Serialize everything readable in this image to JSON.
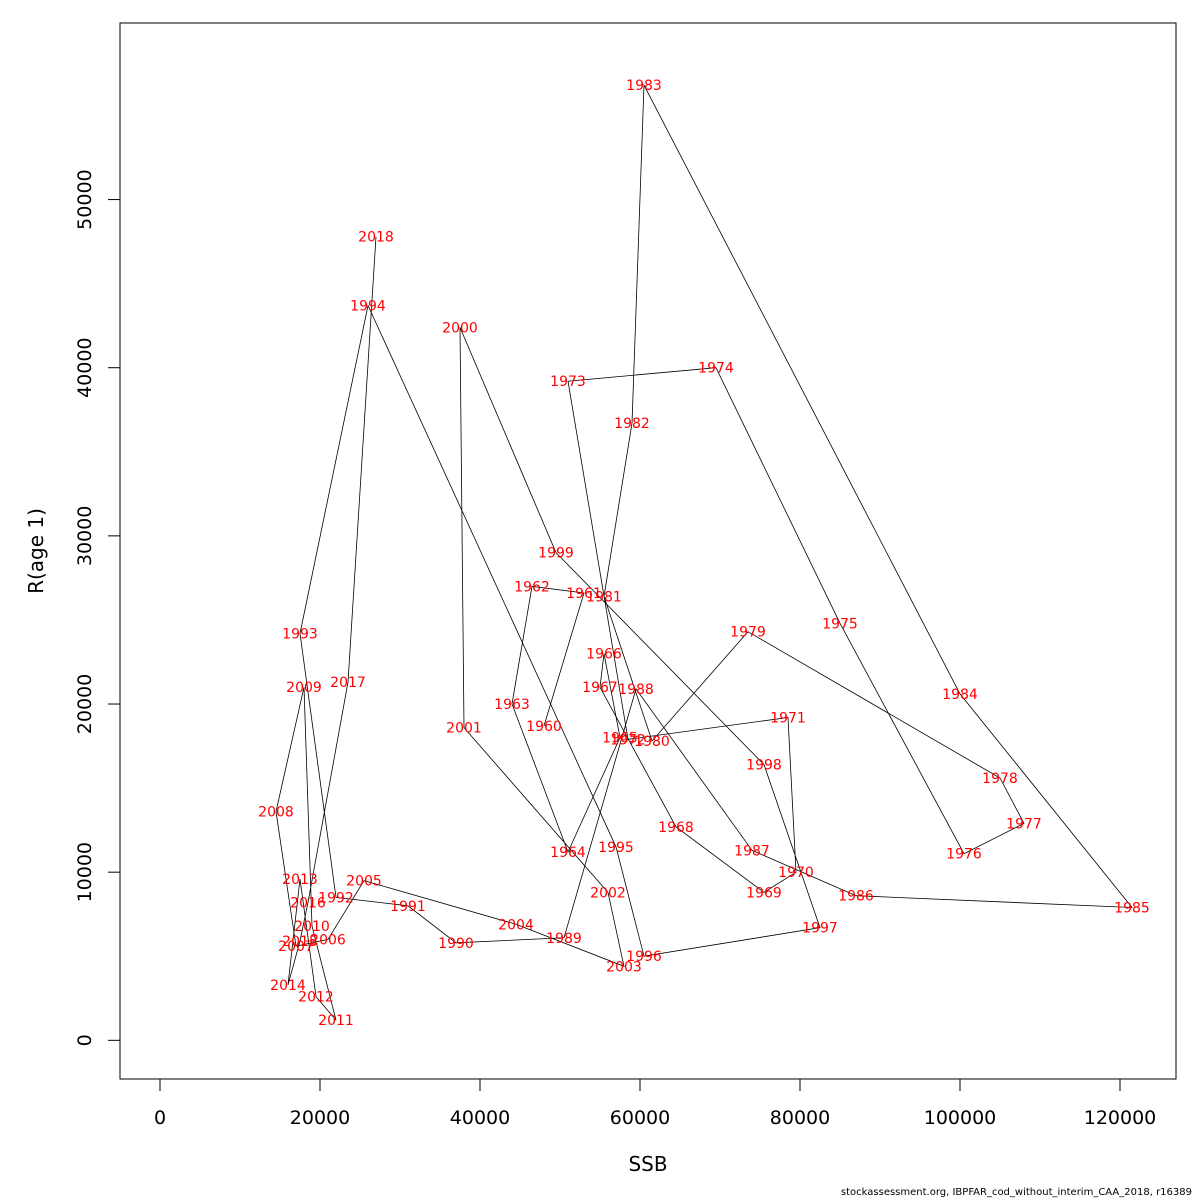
{
  "chart_data": {
    "type": "line",
    "xlabel": "SSB",
    "ylabel": "R(age 1)",
    "xlim": [
      -5000,
      127000
    ],
    "ylim": [
      -2300,
      60500
    ],
    "x_ticks": [
      0,
      20000,
      40000,
      60000,
      80000,
      100000,
      120000
    ],
    "y_ticks": [
      0,
      10000,
      20000,
      30000,
      40000,
      50000
    ],
    "grid": false,
    "line_color": "#000000",
    "label_color": "#ff0000",
    "points": [
      {
        "year": "1960",
        "x": 48000,
        "y": 18700
      },
      {
        "year": "1961",
        "x": 53000,
        "y": 26600
      },
      {
        "year": "1962",
        "x": 46500,
        "y": 27000
      },
      {
        "year": "1963",
        "x": 44000,
        "y": 20000
      },
      {
        "year": "1964",
        "x": 51000,
        "y": 11200
      },
      {
        "year": "1965",
        "x": 57500,
        "y": 18000
      },
      {
        "year": "1966",
        "x": 55500,
        "y": 23000
      },
      {
        "year": "1967",
        "x": 55000,
        "y": 21000
      },
      {
        "year": "1968",
        "x": 64500,
        "y": 12700
      },
      {
        "year": "1969",
        "x": 75500,
        "y": 8800
      },
      {
        "year": "1970",
        "x": 79500,
        "y": 10000
      },
      {
        "year": "1971",
        "x": 78500,
        "y": 19200
      },
      {
        "year": "1972",
        "x": 58500,
        "y": 17900
      },
      {
        "year": "1973",
        "x": 51000,
        "y": 39200
      },
      {
        "year": "1974",
        "x": 69500,
        "y": 40000
      },
      {
        "year": "1975",
        "x": 85000,
        "y": 24800
      },
      {
        "year": "1976",
        "x": 100500,
        "y": 11100
      },
      {
        "year": "1977",
        "x": 108000,
        "y": 12900
      },
      {
        "year": "1978",
        "x": 105000,
        "y": 15600
      },
      {
        "year": "1979",
        "x": 73500,
        "y": 24300
      },
      {
        "year": "1980",
        "x": 61500,
        "y": 17800
      },
      {
        "year": "1981",
        "x": 55500,
        "y": 26400
      },
      {
        "year": "1982",
        "x": 59000,
        "y": 36700
      },
      {
        "year": "1983",
        "x": 60500,
        "y": 56800
      },
      {
        "year": "1984",
        "x": 100000,
        "y": 20600
      },
      {
        "year": "1985",
        "x": 121500,
        "y": 7900
      },
      {
        "year": "1986",
        "x": 87000,
        "y": 8600
      },
      {
        "year": "1987",
        "x": 74000,
        "y": 11300
      },
      {
        "year": "1988",
        "x": 59500,
        "y": 20900
      },
      {
        "year": "1989",
        "x": 50500,
        "y": 6100
      },
      {
        "year": "1990",
        "x": 37000,
        "y": 5800
      },
      {
        "year": "1991",
        "x": 31000,
        "y": 8000
      },
      {
        "year": "1992",
        "x": 22000,
        "y": 8500
      },
      {
        "year": "1993",
        "x": 17500,
        "y": 24200
      },
      {
        "year": "1994",
        "x": 26000,
        "y": 43700
      },
      {
        "year": "1995",
        "x": 57000,
        "y": 11500
      },
      {
        "year": "1996",
        "x": 60500,
        "y": 5000
      },
      {
        "year": "1997",
        "x": 82500,
        "y": 6700
      },
      {
        "year": "1998",
        "x": 75500,
        "y": 16400
      },
      {
        "year": "1999",
        "x": 49500,
        "y": 29000
      },
      {
        "year": "2000",
        "x": 37500,
        "y": 42400
      },
      {
        "year": "2001",
        "x": 38000,
        "y": 18600
      },
      {
        "year": "2002",
        "x": 56000,
        "y": 8800
      },
      {
        "year": "2003",
        "x": 58000,
        "y": 4400
      },
      {
        "year": "2004",
        "x": 44500,
        "y": 6900
      },
      {
        "year": "2005",
        "x": 25500,
        "y": 9500
      },
      {
        "year": "2006",
        "x": 21000,
        "y": 6000
      },
      {
        "year": "2007",
        "x": 17000,
        "y": 5600
      },
      {
        "year": "2008",
        "x": 14500,
        "y": 13600
      },
      {
        "year": "2009",
        "x": 18000,
        "y": 21000
      },
      {
        "year": "2010",
        "x": 19000,
        "y": 6800
      },
      {
        "year": "2011",
        "x": 22000,
        "y": 1200
      },
      {
        "year": "2012",
        "x": 19500,
        "y": 2600
      },
      {
        "year": "2013",
        "x": 17500,
        "y": 9600
      },
      {
        "year": "2014",
        "x": 16000,
        "y": 3300
      },
      {
        "year": "2015",
        "x": 17500,
        "y": 5900
      },
      {
        "year": "2016",
        "x": 18500,
        "y": 8200
      },
      {
        "year": "2017",
        "x": 23500,
        "y": 21300
      },
      {
        "year": "2018",
        "x": 27000,
        "y": 47800
      }
    ]
  },
  "caption": "stockassessment.org, IBPFAR_cod_without_interim_CAA_2018, r16389"
}
